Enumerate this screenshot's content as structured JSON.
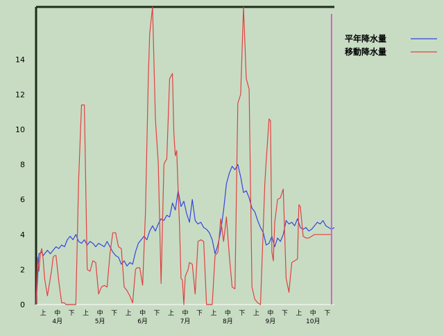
{
  "chart_data": {
    "type": "line",
    "title": "",
    "xlabel": "",
    "ylabel": "",
    "ylim": [
      0,
      17
    ],
    "yticks": [
      0,
      2,
      4,
      6,
      8,
      10,
      12,
      14
    ],
    "x_range": [
      0,
      21
    ],
    "grid": false,
    "legend_position": "top-right",
    "x_ticks": [
      {
        "pos": 0.5,
        "label": "上"
      },
      {
        "pos": 1.5,
        "label": "中"
      },
      {
        "pos": 2.5,
        "label": "下"
      },
      {
        "pos": 3.5,
        "label": "上"
      },
      {
        "pos": 4.5,
        "label": "中"
      },
      {
        "pos": 5.5,
        "label": "下"
      },
      {
        "pos": 6.5,
        "label": "上"
      },
      {
        "pos": 7.5,
        "label": "中"
      },
      {
        "pos": 8.5,
        "label": "下"
      },
      {
        "pos": 9.5,
        "label": "上"
      },
      {
        "pos": 10.5,
        "label": "中"
      },
      {
        "pos": 11.5,
        "label": "下"
      },
      {
        "pos": 12.5,
        "label": "上"
      },
      {
        "pos": 13.5,
        "label": "中"
      },
      {
        "pos": 14.5,
        "label": "下"
      },
      {
        "pos": 15.5,
        "label": "上"
      },
      {
        "pos": 16.5,
        "label": "中"
      },
      {
        "pos": 17.5,
        "label": "下"
      },
      {
        "pos": 18.5,
        "label": "上"
      },
      {
        "pos": 19.5,
        "label": "中"
      },
      {
        "pos": 20.5,
        "label": "下"
      }
    ],
    "month_labels": [
      {
        "pos": 1.5,
        "label": "4月"
      },
      {
        "pos": 4.5,
        "label": "5月"
      },
      {
        "pos": 7.5,
        "label": "6月"
      },
      {
        "pos": 10.5,
        "label": "7月"
      },
      {
        "pos": 13.5,
        "label": "8月"
      },
      {
        "pos": 16.5,
        "label": "9月"
      },
      {
        "pos": 19.5,
        "label": "10月"
      }
    ],
    "current_marker_x": 20.8,
    "current_marker_color": "#cc66cc",
    "series": [
      {
        "name": "平年降水量",
        "color": "#3344dd",
        "x": [
          0,
          0.2,
          0.4,
          0.5,
          0.8,
          1.0,
          1.2,
          1.4,
          1.6,
          1.8,
          2.0,
          2.2,
          2.4,
          2.6,
          2.8,
          3.0,
          3.2,
          3.4,
          3.6,
          3.8,
          4.0,
          4.2,
          4.4,
          4.6,
          4.8,
          5.0,
          5.2,
          5.4,
          5.6,
          5.8,
          6.0,
          6.2,
          6.4,
          6.6,
          6.8,
          7.0,
          7.2,
          7.4,
          7.6,
          7.8,
          8.0,
          8.2,
          8.4,
          8.6,
          8.8,
          9.0,
          9.2,
          9.4,
          9.6,
          9.8,
          10.0,
          10.2,
          10.4,
          10.6,
          10.8,
          11.0,
          11.2,
          11.4,
          11.6,
          11.8,
          12.0,
          12.2,
          12.4,
          12.6,
          12.8,
          13.0,
          13.2,
          13.4,
          13.6,
          13.8,
          14.0,
          14.2,
          14.4,
          14.6,
          14.8,
          15.0,
          15.2,
          15.4,
          15.6,
          15.8,
          16.0,
          16.2,
          16.4,
          16.6,
          16.8,
          17.0,
          17.2,
          17.4,
          17.6,
          17.8,
          18.0,
          18.2,
          18.4,
          18.6,
          18.8,
          19.0,
          19.2,
          19.4,
          19.6,
          19.8,
          20.0,
          20.2,
          20.4,
          20.6,
          20.8,
          21.0
        ],
        "y": [
          0.0,
          2.9,
          3.0,
          2.8,
          3.1,
          2.9,
          3.1,
          3.3,
          3.2,
          3.4,
          3.3,
          3.7,
          3.9,
          3.7,
          4.0,
          3.6,
          3.5,
          3.7,
          3.4,
          3.6,
          3.5,
          3.3,
          3.5,
          3.4,
          3.3,
          3.6,
          3.3,
          3.0,
          2.8,
          2.7,
          2.3,
          2.5,
          2.2,
          2.4,
          2.3,
          3.0,
          3.5,
          3.7,
          3.9,
          3.7,
          4.2,
          4.5,
          4.2,
          4.6,
          4.9,
          4.8,
          5.1,
          5.0,
          5.8,
          5.4,
          6.5,
          5.6,
          5.9,
          5.2,
          4.7,
          6.0,
          4.8,
          4.6,
          4.7,
          4.4,
          4.3,
          4.1,
          3.7,
          2.9,
          3.4,
          4.2,
          5.4,
          6.9,
          7.5,
          7.9,
          7.7,
          8.0,
          7.3,
          6.4,
          6.5,
          6.1,
          5.5,
          5.3,
          4.8,
          4.4,
          4.1,
          3.4,
          3.5,
          3.9,
          3.3,
          3.8,
          3.6,
          4.0,
          4.8,
          4.6,
          4.7,
          4.5,
          4.9,
          4.4,
          4.3,
          4.4,
          4.2,
          4.3,
          4.5,
          4.7,
          4.6,
          4.8,
          4.5,
          4.4,
          4.3,
          4.4
        ]
      },
      {
        "name": "移動降水量",
        "color": "#e04040",
        "x": [
          0,
          0.1,
          0.2,
          0.3,
          0.4,
          0.5,
          0.6,
          0.7,
          0.8,
          1.0,
          1.1,
          1.2,
          1.3,
          1.4,
          1.6,
          1.8,
          2.0,
          2.1,
          2.3,
          2.5,
          2.8,
          3.0,
          3.2,
          3.4,
          3.6,
          3.8,
          4.0,
          4.2,
          4.4,
          4.6,
          4.8,
          5.0,
          5.2,
          5.4,
          5.6,
          5.8,
          6.0,
          6.2,
          6.4,
          6.6,
          6.8,
          7.0,
          7.1,
          7.3,
          7.5,
          7.7,
          7.9,
          8.0,
          8.2,
          8.4,
          8.6,
          8.8,
          9.0,
          9.1,
          9.2,
          9.4,
          9.6,
          9.7,
          9.8,
          9.9,
          10.0,
          10.1,
          10.2,
          10.3,
          10.4,
          10.5,
          10.6,
          10.7,
          10.8,
          11.0,
          11.2,
          11.4,
          11.6,
          11.8,
          12.0,
          12.2,
          12.4,
          12.6,
          12.8,
          13.0,
          13.2,
          13.4,
          13.6,
          13.8,
          14.0,
          14.2,
          14.4,
          14.6,
          14.8,
          15.0,
          15.2,
          15.4,
          15.6,
          15.8,
          16.0,
          16.1,
          16.2,
          16.4,
          16.5,
          16.6,
          16.7,
          16.8,
          17.0,
          17.2,
          17.4,
          17.6,
          17.8,
          18.0,
          18.2,
          18.4,
          18.5,
          18.6,
          18.8,
          19.0,
          19.2,
          19.4,
          19.6,
          19.8,
          20.0,
          20.2,
          20.4,
          20.6,
          20.8
        ],
        "y": [
          0,
          2.7,
          1.9,
          2.9,
          3.2,
          2.6,
          1.5,
          1.0,
          0.5,
          1.5,
          2.0,
          2.7,
          2.8,
          2.8,
          1.3,
          0.1,
          0.1,
          0.0,
          0.0,
          0.0,
          0.0,
          7.2,
          11.4,
          11.4,
          2.0,
          1.9,
          2.5,
          2.4,
          0.6,
          1.0,
          1.1,
          1.0,
          2.9,
          4.1,
          4.1,
          3.3,
          3.2,
          1.0,
          0.8,
          0.5,
          0.1,
          2.0,
          2.1,
          2.1,
          1.1,
          5.3,
          13.0,
          15.5,
          17.0,
          10.6,
          8.1,
          1.2,
          8.0,
          8.2,
          8.3,
          12.9,
          13.2,
          9.8,
          8.5,
          8.8,
          6.5,
          4.5,
          1.5,
          1.4,
          0.0,
          1.6,
          1.8,
          2.0,
          2.4,
          2.3,
          0.6,
          3.6,
          3.7,
          3.6,
          0.0,
          0.0,
          0.0,
          2.8,
          3.0,
          4.9,
          3.6,
          5.0,
          2.8,
          1.0,
          0.9,
          11.5,
          12.0,
          17.0,
          12.9,
          12.3,
          1.0,
          0.3,
          0.1,
          0.0,
          4.5,
          6.9,
          8.2,
          10.6,
          10.5,
          3.0,
          2.5,
          4.7,
          6.0,
          6.1,
          6.6,
          1.5,
          0.7,
          2.4,
          2.5,
          2.6,
          5.7,
          5.6,
          3.9,
          3.8,
          3.8,
          3.9,
          4.0,
          4.0,
          4.0,
          4.0,
          4.0,
          4.0,
          4.0
        ]
      }
    ]
  }
}
